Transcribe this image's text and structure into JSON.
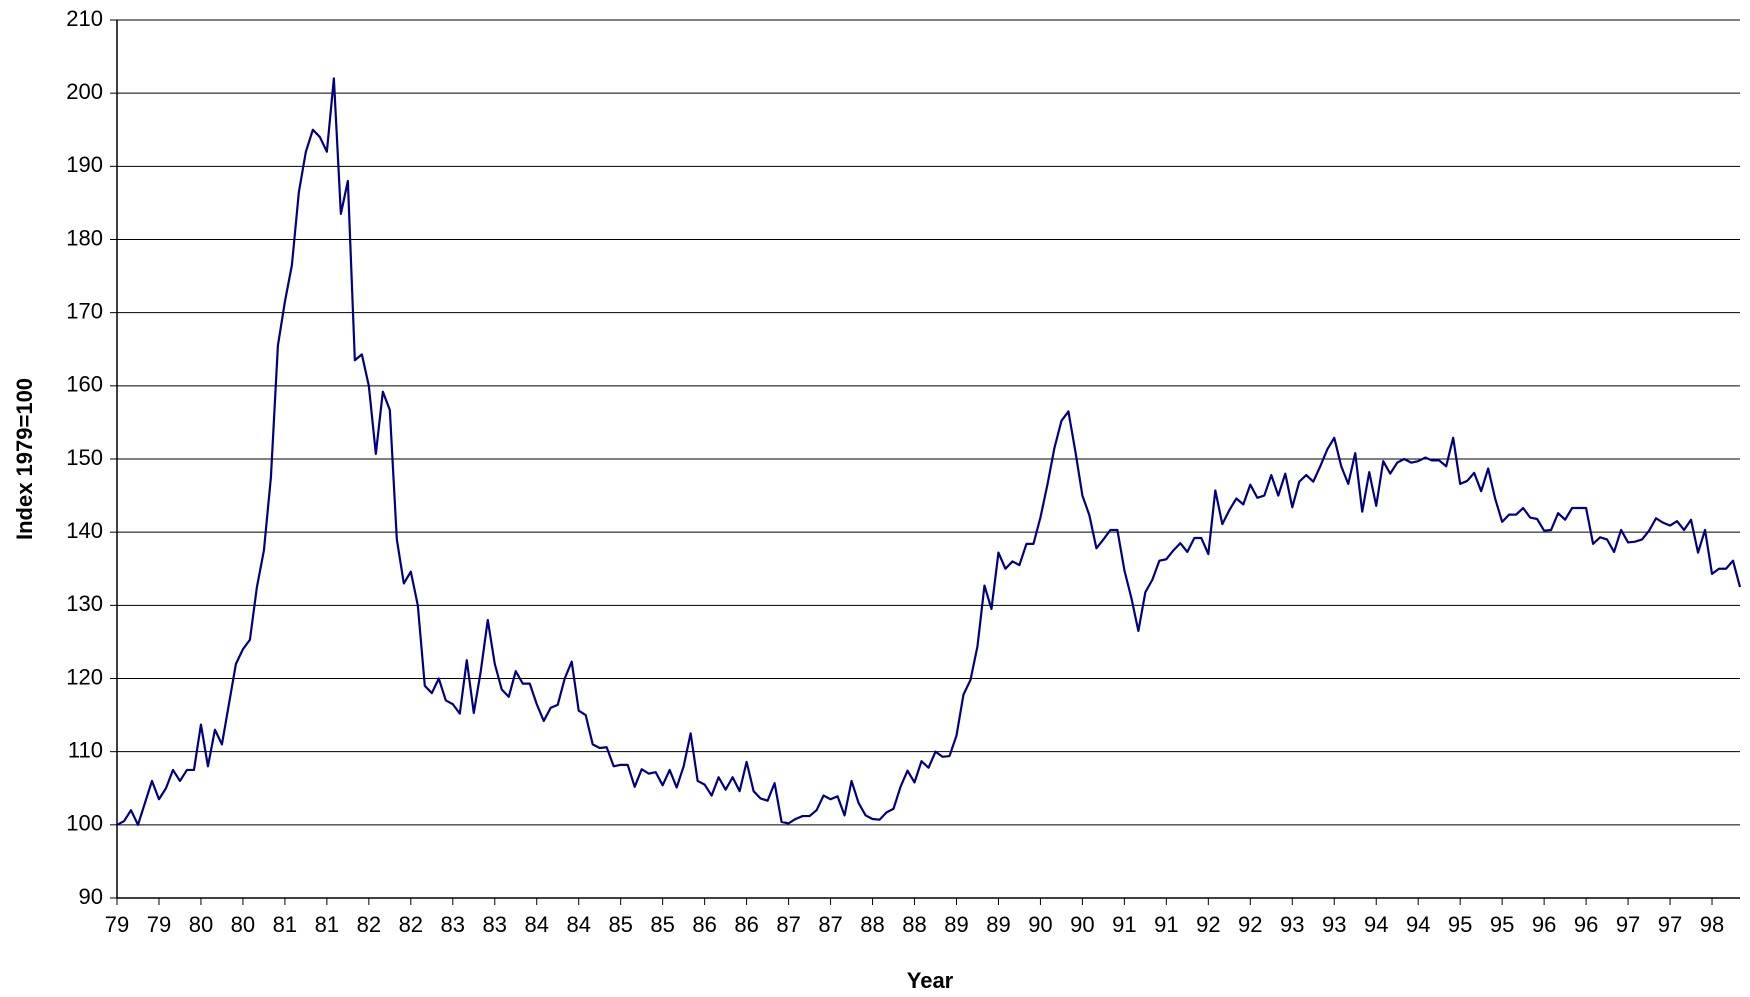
{
  "chart_data": {
    "type": "line",
    "x_label": "Year",
    "y_label": "Index 1979=100",
    "color": "#000080",
    "grid": true,
    "ylim": [
      90,
      210
    ],
    "yticks": [
      90,
      100,
      110,
      120,
      130,
      140,
      150,
      160,
      170,
      180,
      190,
      200,
      210
    ],
    "categories": [
      "79",
      null,
      null,
      null,
      null,
      null,
      "79",
      null,
      null,
      null,
      null,
      null,
      "80",
      null,
      null,
      null,
      null,
      null,
      "80",
      null,
      null,
      null,
      null,
      null,
      "81",
      null,
      null,
      null,
      null,
      null,
      "81",
      null,
      null,
      null,
      null,
      null,
      "82",
      null,
      null,
      null,
      null,
      null,
      "82",
      null,
      null,
      null,
      null,
      null,
      "83",
      null,
      null,
      null,
      null,
      null,
      "83",
      null,
      null,
      null,
      null,
      null,
      "84",
      null,
      null,
      null,
      null,
      null,
      "84",
      null,
      null,
      null,
      null,
      null,
      "85",
      null,
      null,
      null,
      null,
      null,
      "85",
      null,
      null,
      null,
      null,
      null,
      "86",
      null,
      null,
      null,
      null,
      null,
      "86",
      null,
      null,
      null,
      null,
      null,
      "87",
      null,
      null,
      null,
      null,
      null,
      "87",
      null,
      null,
      null,
      null,
      null,
      "88",
      null,
      null,
      null,
      null,
      null,
      "88",
      null,
      null,
      null,
      null,
      null,
      "89",
      null,
      null,
      null,
      null,
      null,
      "89",
      null,
      null,
      null,
      null,
      null,
      "90",
      null,
      null,
      null,
      null,
      null,
      "90",
      null,
      null,
      null,
      null,
      null,
      "91",
      null,
      null,
      null,
      null,
      null,
      "91",
      null,
      null,
      null,
      null,
      null,
      "92",
      null,
      null,
      null,
      null,
      null,
      "92",
      null,
      null,
      null,
      null,
      null,
      "93",
      null,
      null,
      null,
      null,
      null,
      "93",
      null,
      null,
      null,
      null,
      null,
      "94",
      null,
      null,
      null,
      null,
      null,
      "94",
      null,
      null,
      null,
      null,
      null,
      "95",
      null,
      null,
      null,
      null,
      null,
      "95",
      null,
      null,
      null,
      null,
      null,
      "96",
      null,
      null,
      null,
      null,
      null,
      "96",
      null,
      null,
      null,
      null,
      null,
      "97",
      null,
      null,
      null,
      null,
      null,
      "97",
      null,
      null,
      null,
      null,
      null,
      "98",
      null,
      null,
      null,
      null
    ],
    "values": [
      100,
      100.5,
      102,
      100,
      103,
      106,
      103.5,
      105,
      107.5,
      106,
      107.5,
      107.5,
      113.7,
      108,
      113,
      111,
      116.5,
      122,
      124,
      125.3,
      132.5,
      137.5,
      147.5,
      165.5,
      171.5,
      176.5,
      186.5,
      192,
      195,
      194,
      192,
      202,
      183.5,
      188,
      163.5,
      164.3,
      160,
      150.7,
      159.2,
      156.7,
      139,
      133,
      134.6,
      130,
      119,
      118,
      120,
      117,
      116.5,
      115.2,
      122.5,
      115.3,
      121,
      128,
      122,
      118.5,
      117.5,
      121,
      119.3,
      119.3,
      116.5,
      114.2,
      116,
      116.4,
      120,
      122.3,
      115.6,
      115,
      111,
      110.5,
      110.6,
      108,
      108.2,
      108.2,
      105.2,
      107.6,
      107,
      107.2,
      105.4,
      107.5,
      105.1,
      108,
      112.5,
      106,
      105.5,
      104,
      106.5,
      104.8,
      106.5,
      104.6,
      108.6,
      104.6,
      103.6,
      103.3,
      105.7,
      100.4,
      100.2,
      100.8,
      101.2,
      101.2,
      102,
      104,
      103.5,
      103.9,
      101.3,
      106,
      103,
      101.3,
      100.8,
      100.7,
      101.7,
      102.2,
      105.2,
      107.4,
      105.8,
      108.7,
      107.8,
      110,
      109.3,
      109.4,
      112.2,
      117.8,
      119.8,
      124.4,
      132.7,
      129.5,
      137.2,
      135,
      136,
      135.5,
      138.4,
      138.4,
      142,
      146.5,
      151.5,
      155.2,
      156.5,
      151,
      145,
      142.3,
      137.8,
      139,
      140.3,
      140.3,
      134.8,
      131,
      126.5,
      131.8,
      133.5,
      136.1,
      136.3,
      137.5,
      138.5,
      137.3,
      139.2,
      139.2,
      137,
      145.7,
      141.1,
      143,
      144.6,
      143.8,
      146.5,
      144.7,
      145,
      147.8,
      145,
      148,
      143.4,
      146.9,
      147.8,
      146.9,
      149,
      151.3,
      152.9,
      149,
      146.6,
      150.8,
      142.8,
      148.2,
      143.6,
      149.7,
      148,
      149.5,
      150,
      149.5,
      149.7,
      150.2,
      149.8,
      149.8,
      149,
      152.9,
      146.6,
      147,
      148.1,
      145.6,
      148.7,
      144.6,
      141.4,
      142.4,
      142.4,
      143.3,
      142,
      141.8,
      140.2,
      140.3,
      142.6,
      141.7,
      143.3,
      143.3,
      143.3,
      138.4,
      139.3,
      139,
      137.3,
      140.3,
      138.6,
      138.7,
      139,
      140.2,
      141.9,
      141.3,
      140.9,
      141.5,
      140.3,
      141.7,
      137.2,
      140.3,
      134.3,
      135,
      135,
      136.1,
      132.5
    ]
  }
}
